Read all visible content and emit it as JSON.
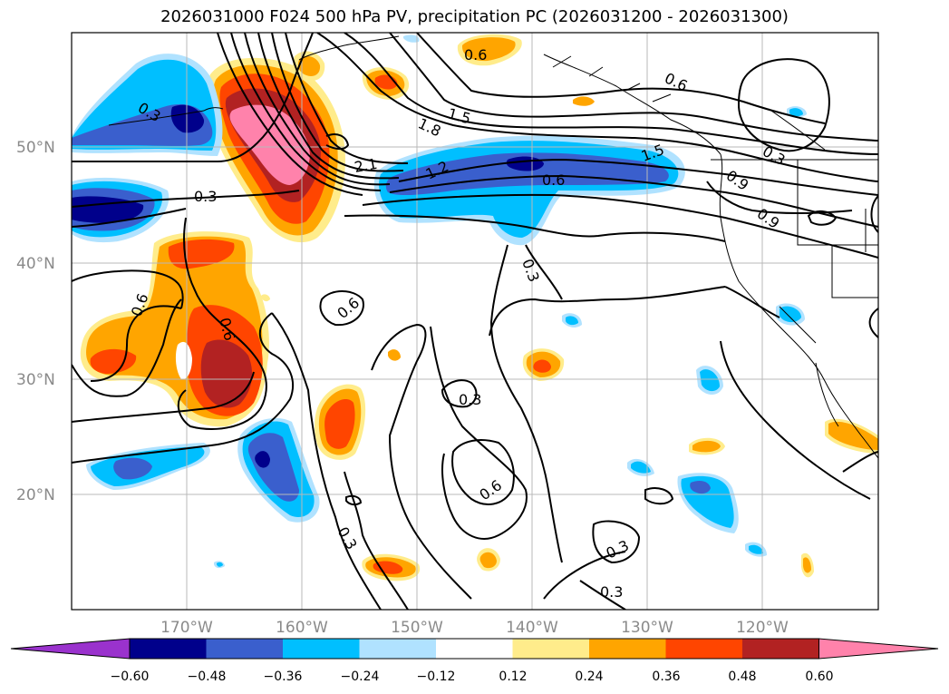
{
  "title": "2026031000 F024 500 hPa PV, precipitation PC (2026031200 - 2026031300)",
  "lat_labels": [
    "50°N",
    "40°N",
    "30°N",
    "20°N"
  ],
  "lon_labels": [
    "170°W",
    "160°W",
    "150°W",
    "140°W",
    "130°W",
    "120°W"
  ],
  "contour_labels": [
    "0.3",
    "0.6",
    "0.6",
    "0.6",
    "0.3",
    "0.3",
    "0.3",
    "0.3",
    "0.6",
    "0.3",
    "0.6",
    "0.6",
    "0.3",
    "1.8",
    "1.5",
    "2.1",
    "1.2",
    "0.6",
    "1.5",
    "0.9",
    "0.9",
    "0.3"
  ],
  "colorbar": {
    "ticks": [
      "−0.60",
      "−0.48",
      "−0.36",
      "−0.24",
      "−0.12",
      "0.12",
      "0.24",
      "0.36",
      "0.48",
      "0.60"
    ],
    "colors": [
      "#9a32cd",
      "#00008b",
      "#3a5fcd",
      "#00bfff",
      "#b0e2ff",
      "#ffffff",
      "#ffec8b",
      "#ffa500",
      "#ff4500",
      "#b22222",
      "#ff82ab"
    ]
  }
}
